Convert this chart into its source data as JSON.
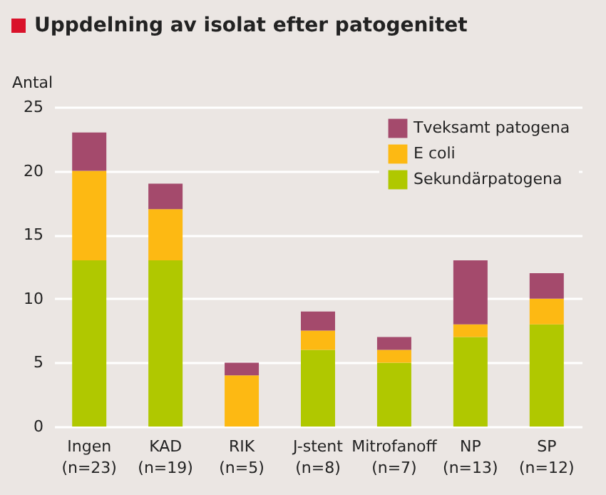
{
  "chart_data": {
    "type": "bar",
    "title": "Uppdelning av isolat efter patogenitet",
    "ylabel": "Antal",
    "categories": [
      "Ingen\n(n=23)",
      "KAD\n(n=19)",
      "RIK\n(n=5)",
      "J-stent\n(n=8)",
      "Mitrofanoff\n(n=7)",
      "NP\n(n=13)",
      "SP\n(n=12)"
    ],
    "stacked": true,
    "series": [
      {
        "name": "Sekundärpatogena",
        "color": "#b0c800",
        "values": [
          13,
          13,
          0,
          6,
          5,
          7,
          8
        ]
      },
      {
        "name": "E coli",
        "color": "#fdb913",
        "values": [
          7,
          4,
          4,
          1.5,
          1,
          1,
          2
        ]
      },
      {
        "name": "Tveksamt patogena",
        "color": "#a44a6c",
        "values": [
          3,
          2,
          1,
          1.5,
          1,
          5,
          2
        ]
      }
    ],
    "ylim": [
      0,
      25
    ],
    "yticks": [
      0,
      5,
      10,
      15,
      20,
      25
    ],
    "grid": "y",
    "legend": "top right"
  }
}
